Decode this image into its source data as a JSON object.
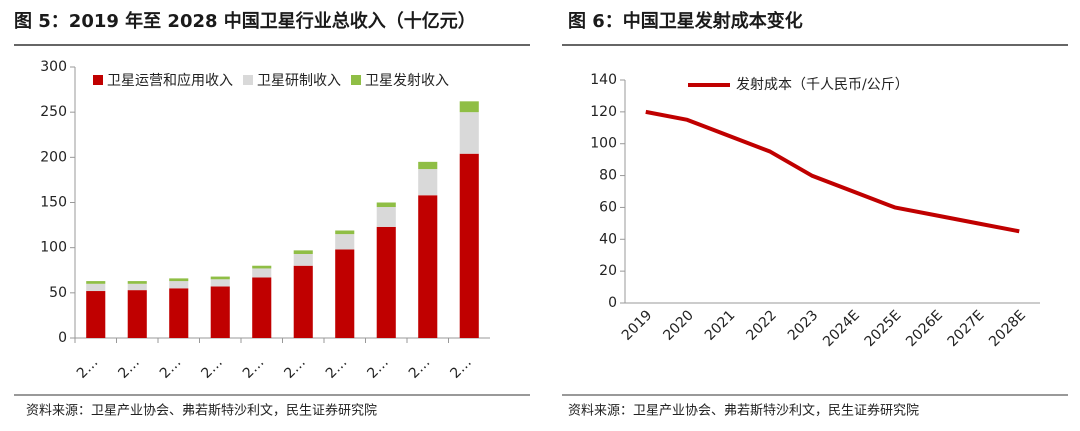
{
  "chart_data": [
    {
      "type": "bar",
      "stacked": true,
      "title": "图 5：2019 年至 2028 中国卫星行业总收入（十亿元）",
      "source": "资料来源：卫星产业协会、弗若斯特沙利文，民生证券研究院",
      "categories": [
        "2…",
        "2…",
        "2…",
        "2…",
        "2…",
        "2…",
        "2…",
        "2…",
        "2…",
        "2…"
      ],
      "series": [
        {
          "name": "卫星运营和应用收入",
          "color": "#c00000",
          "values": [
            52,
            53,
            55,
            57,
            67,
            80,
            98,
            123,
            158,
            204
          ]
        },
        {
          "name": "卫星研制收入",
          "color": "#d9d9d9",
          "values": [
            8,
            7,
            8,
            8,
            10,
            13,
            17,
            22,
            29,
            46
          ]
        },
        {
          "name": "卫星发射收入",
          "color": "#8fbe45",
          "values": [
            3,
            3,
            3,
            3,
            3,
            4,
            4,
            5,
            8,
            12
          ]
        }
      ],
      "ylim": [
        0,
        300
      ],
      "yticks": [
        0,
        50,
        100,
        150,
        200,
        250,
        300
      ],
      "grid": false
    },
    {
      "type": "line",
      "title": "图 6：中国卫星发射成本变化",
      "source": "资料来源：卫星产业协会、弗若斯特沙利文，民生证券研究院",
      "categories": [
        "2019",
        "2020",
        "2021",
        "2022",
        "2023",
        "2024E",
        "2025E",
        "2026E",
        "2027E",
        "2028E"
      ],
      "series": [
        {
          "name": "发射成本（千人民币/公斤）",
          "color": "#c00000",
          "values": [
            120,
            115,
            105,
            95,
            80,
            70,
            60,
            55,
            50,
            45
          ]
        }
      ],
      "ylim": [
        0,
        140
      ],
      "yticks": [
        0,
        20,
        40,
        60,
        80,
        100,
        120,
        140
      ],
      "grid": false
    }
  ]
}
